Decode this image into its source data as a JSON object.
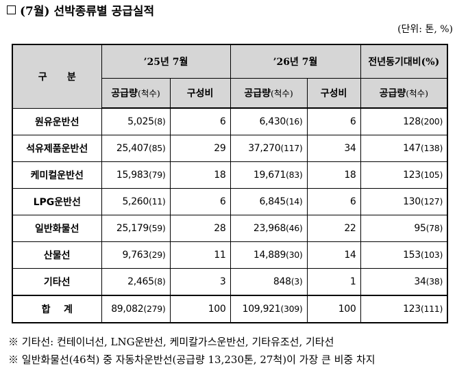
{
  "title": "(7월) 선박종류별 공급실적",
  "unit": "(단위: 톤, %)",
  "header": {
    "category": "구      분",
    "y2025": "’25년 7월",
    "y2026": "’26년 7월",
    "yoy": "전년동기대비(%)",
    "supply_label": "공급량",
    "supply_unit": "(척수)",
    "share": "구성비"
  },
  "rows": [
    {
      "name": "원유운반선",
      "s25": "5,025",
      "c25": "(8)",
      "r25": "6",
      "s26": "6,430",
      "c26": "(16)",
      "r26": "6",
      "y": "128",
      "yc": "(200)"
    },
    {
      "name": "석유제품운반선",
      "s25": "25,407",
      "c25": "(85)",
      "r25": "29",
      "s26": "37,270",
      "c26": "(117)",
      "r26": "34",
      "y": "147",
      "yc": "(138)"
    },
    {
      "name": "케미컬운반선",
      "s25": "15,983",
      "c25": "(79)",
      "r25": "18",
      "s26": "19,671",
      "c26": "(83)",
      "r26": "18",
      "y": "123",
      "yc": "(105)"
    },
    {
      "name": "LPG운반선",
      "s25": "5,260",
      "c25": "(11)",
      "r25": "6",
      "s26": "6,845",
      "c26": "(14)",
      "r26": "6",
      "y": "130",
      "yc": "(127)"
    },
    {
      "name": "일반화물선",
      "s25": "25,179",
      "c25": "(59)",
      "r25": "28",
      "s26": "23,968",
      "c26": "(46)",
      "r26": "22",
      "y": "95",
      "yc": "(78)"
    },
    {
      "name": "산물선",
      "s25": "9,763",
      "c25": "(29)",
      "r25": "11",
      "s26": "14,889",
      "c26": "(30)",
      "r26": "14",
      "y": "153",
      "yc": "(103)"
    },
    {
      "name": "기타선",
      "s25": "2,465",
      "c25": "(8)",
      "r25": "3",
      "s26": "848",
      "c26": "(3)",
      "r26": "1",
      "y": "34",
      "yc": "(38)"
    }
  ],
  "total": {
    "name": "합    계",
    "s25": "89,082",
    "c25": "(279)",
    "r25": "100",
    "s26": "109,921",
    "c26": "(309)",
    "r26": "100",
    "y": "123",
    "yc": "(111)"
  },
  "notes": [
    "※ 기타선: 컨테이너선, LNG운반선, 케미칼가스운반선, 기타유조선, 기타선",
    "※ 일반화물선(46척) 중 자동차운반선(공급량 13,230톤, 27척)이 가장 큰 비중 차지"
  ]
}
